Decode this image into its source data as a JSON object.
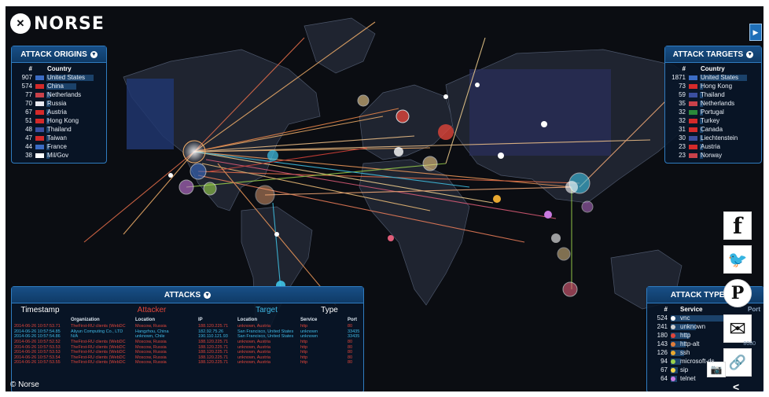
{
  "brand": {
    "logo_text": "NORSE",
    "badge_glyph": "✕"
  },
  "copyright": "© Norse",
  "origins": {
    "title": "ATTACK ORIGINS",
    "col_num": "#",
    "col_country": "Country",
    "rows": [
      {
        "num": "907",
        "country": "United States",
        "share": 1.0,
        "flag": "#3b6cc4"
      },
      {
        "num": "574",
        "country": "China",
        "share": 0.63,
        "flag": "#d42a2a"
      },
      {
        "num": "77",
        "country": "Netherlands",
        "share": 0.09,
        "flag": "#c9414a"
      },
      {
        "num": "70",
        "country": "Russia",
        "share": 0.08,
        "flag": "#e8e8f0"
      },
      {
        "num": "67",
        "country": "Austria",
        "share": 0.07,
        "flag": "#d42a2a"
      },
      {
        "num": "51",
        "country": "Hong Kong",
        "share": 0.06,
        "flag": "#d42a2a"
      },
      {
        "num": "48",
        "country": "Thailand",
        "share": 0.05,
        "flag": "#3b4fa0"
      },
      {
        "num": "47",
        "country": "Taiwan",
        "share": 0.05,
        "flag": "#d42a2a"
      },
      {
        "num": "44",
        "country": "France",
        "share": 0.05,
        "flag": "#3b6cc4"
      },
      {
        "num": "38",
        "country": "Mil/Gov",
        "share": 0.04,
        "flag": "#ffffff"
      }
    ]
  },
  "targets": {
    "title": "ATTACK TARGETS",
    "col_num": "#",
    "col_country": "Country",
    "rows": [
      {
        "num": "1871",
        "country": "United States",
        "share": 1.0,
        "flag": "#3b6cc4"
      },
      {
        "num": "73",
        "country": "Hong Kong",
        "share": 0.04,
        "flag": "#d42a2a"
      },
      {
        "num": "59",
        "country": "Thailand",
        "share": 0.03,
        "flag": "#3b4fa0"
      },
      {
        "num": "35",
        "country": "Netherlands",
        "share": 0.02,
        "flag": "#c9414a"
      },
      {
        "num": "32",
        "country": "Portugal",
        "share": 0.02,
        "flag": "#2a8a3a"
      },
      {
        "num": "32",
        "country": "Turkey",
        "share": 0.02,
        "flag": "#d42a2a"
      },
      {
        "num": "31",
        "country": "Canada",
        "share": 0.02,
        "flag": "#d42a2a"
      },
      {
        "num": "30",
        "country": "Liechtenstein",
        "share": 0.02,
        "flag": "#3b4fa0"
      },
      {
        "num": "23",
        "country": "Austria",
        "share": 0.01,
        "flag": "#d42a2a"
      },
      {
        "num": "23",
        "country": "Norway",
        "share": 0.01,
        "flag": "#c9414a"
      }
    ]
  },
  "attacks": {
    "title": "ATTACKS",
    "col_timestamp": "Timestamp",
    "col_attacker": "Attacker",
    "col_target": "Target",
    "col_type": "Type",
    "sub_organization": "Organization",
    "sub_location": "Location",
    "sub_ip": "IP",
    "sub_target_location": "Location",
    "sub_service": "Service",
    "sub_port": "Port",
    "rows": [
      {
        "date": "2014-06-26",
        "time": "10:57:53.71",
        "org": "TheFirst-RU clients (WebDC",
        "loc": "Moscow, Russia",
        "ip": "188.120.225.71",
        "tloc": "unknown, Austria",
        "svc": "http",
        "port": "80",
        "color": "#e0453a"
      },
      {
        "date": "2014-06-26",
        "time": "10:57:54.85",
        "org": "Aliyun Computing Co., LTD",
        "loc": "Hangzhou, China",
        "ip": "182.92.75.26",
        "tloc": "San Francisco, United States",
        "svc": "unknown",
        "port": "33435",
        "color": "#3fb9e6"
      },
      {
        "date": "2014-06-26",
        "time": "10:57:54.86",
        "org": "N/A",
        "loc": "unknown, Chile",
        "ip": "190.110.121.93",
        "tloc": "San Francisco, United States",
        "svc": "unknown",
        "port": "33435",
        "color": "#3fb9e6"
      },
      {
        "date": "2014-06-26",
        "time": "10:57:52.52",
        "org": "TheFirst-RU clients (WebDC",
        "loc": "Moscow, Russia",
        "ip": "188.120.225.71",
        "tloc": "unknown, Austria",
        "svc": "http",
        "port": "80",
        "color": "#e0453a"
      },
      {
        "date": "2014-06-26",
        "time": "10:57:53.53",
        "org": "TheFirst-RU clients (WebDC",
        "loc": "Moscow, Russia",
        "ip": "188.120.225.71",
        "tloc": "unknown, Austria",
        "svc": "http",
        "port": "80",
        "color": "#e0453a"
      },
      {
        "date": "2014-06-26",
        "time": "10:57:53.53",
        "org": "TheFirst-RU clients (WebDC",
        "loc": "Moscow, Russia",
        "ip": "188.120.225.71",
        "tloc": "unknown, Austria",
        "svc": "http",
        "port": "80",
        "color": "#e0453a"
      },
      {
        "date": "2014-06-26",
        "time": "10:57:53.54",
        "org": "TheFirst-RU clients (WebDC",
        "loc": "Moscow, Russia",
        "ip": "188.120.225.71",
        "tloc": "unknown, Austria",
        "svc": "http",
        "port": "80",
        "color": "#e0453a"
      },
      {
        "date": "2014-06-26",
        "time": "10:57:53.55",
        "org": "TheFirst-RU clients (WebDC",
        "loc": "Moscow, Russia",
        "ip": "188.120.225.71",
        "tloc": "unknown, Austria",
        "svc": "http",
        "port": "80",
        "color": "#e0453a"
      }
    ]
  },
  "types": {
    "title": "ATTACK TYPES",
    "col_num": "#",
    "col_service": "Service",
    "col_port": "Port",
    "rows": [
      {
        "num": "524",
        "service": "vnc",
        "port": "",
        "share": 1.0,
        "color": "#ffffff"
      },
      {
        "num": "241",
        "service": "unknown",
        "port": "",
        "share": 0.46,
        "color": "#cfcfcf"
      },
      {
        "num": "180",
        "service": "http",
        "port": "",
        "share": 0.34,
        "color": "#e0453a"
      },
      {
        "num": "143",
        "service": "http-alt",
        "port": "8080",
        "share": 0.27,
        "color": "#e07c3a"
      },
      {
        "num": "126",
        "service": "ssh",
        "port": "",
        "share": 0.24,
        "color": "#e8a830"
      },
      {
        "num": "94",
        "service": "microsoft-ds",
        "port": "",
        "share": 0.18,
        "color": "#9ad14b"
      },
      {
        "num": "67",
        "service": "sip",
        "port": "",
        "share": 0.13,
        "color": "#f2d64a"
      },
      {
        "num": "64",
        "service": "telnet",
        "port": "",
        "share": 0.12,
        "color": "#c97ae0"
      }
    ]
  },
  "social": {
    "facebook_glyph": "f",
    "twitter_glyph": "🐦",
    "pinterest_glyph": "P",
    "email_glyph": "✉",
    "link_glyph": "🔗",
    "camera_glyph": "📷",
    "share_glyph": "<"
  }
}
